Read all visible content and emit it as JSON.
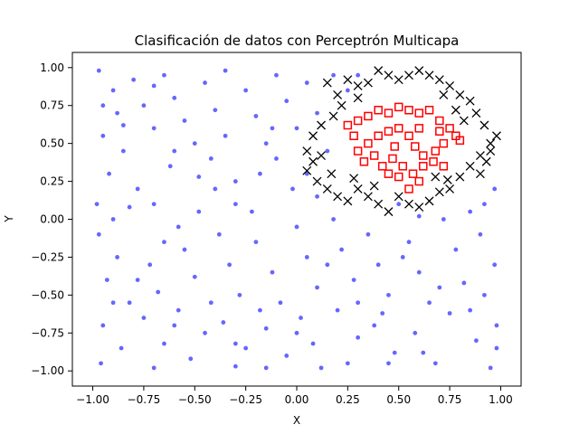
{
  "chart_data": {
    "type": "scatter",
    "title": "Clasificación de datos con Perceptrón Multicapa",
    "xlabel": "X",
    "ylabel": "Y",
    "xlim": [
      -1.1,
      1.1
    ],
    "ylim": [
      -1.1,
      1.1
    ],
    "xticks": [
      -1.0,
      -0.75,
      -0.5,
      -0.25,
      0.0,
      0.25,
      0.5,
      0.75,
      1.0
    ],
    "xtick_labels": [
      "−1.00",
      "−0.75",
      "−0.50",
      "−0.25",
      "0.00",
      "0.25",
      "0.50",
      "0.75",
      "1.00"
    ],
    "yticks": [
      -1.0,
      -0.75,
      -0.5,
      -0.25,
      0.0,
      0.25,
      0.5,
      0.75,
      1.0
    ],
    "ytick_labels": [
      "−1.00",
      "−0.75",
      "−0.50",
      "−0.25",
      "0.00",
      "0.25",
      "0.50",
      "0.75",
      "1.00"
    ],
    "grid": false,
    "series": [
      {
        "marker": "dot",
        "color": "#0000ff",
        "points": [
          [
            -0.97,
            0.98
          ],
          [
            -0.9,
            0.85
          ],
          [
            -0.88,
            0.7
          ],
          [
            -0.95,
            0.55
          ],
          [
            -0.8,
            0.92
          ],
          [
            -0.75,
            0.75
          ],
          [
            -0.7,
            0.6
          ],
          [
            -0.85,
            0.45
          ],
          [
            -0.92,
            0.3
          ],
          [
            -0.78,
            0.2
          ],
          [
            -0.65,
            0.95
          ],
          [
            -0.6,
            0.8
          ],
          [
            -0.55,
            0.65
          ],
          [
            -0.5,
            0.5
          ],
          [
            -0.62,
            0.35
          ],
          [
            -0.7,
            0.1
          ],
          [
            -0.45,
            0.9
          ],
          [
            -0.4,
            0.72
          ],
          [
            -0.35,
            0.55
          ],
          [
            -0.42,
            0.4
          ],
          [
            -0.3,
            0.25
          ],
          [
            -0.25,
            0.85
          ],
          [
            -0.2,
            0.68
          ],
          [
            -0.15,
            0.5
          ],
          [
            -0.1,
            0.95
          ],
          [
            -0.05,
            0.78
          ],
          [
            0.0,
            0.6
          ],
          [
            0.05,
            0.9
          ],
          [
            -0.18,
            0.3
          ],
          [
            -0.3,
            0.1
          ],
          [
            -0.48,
            0.05
          ],
          [
            -0.58,
            -0.05
          ],
          [
            -0.97,
            -0.1
          ],
          [
            -0.88,
            -0.25
          ],
          [
            -0.93,
            -0.4
          ],
          [
            -0.82,
            -0.55
          ],
          [
            -0.95,
            -0.7
          ],
          [
            -0.86,
            -0.85
          ],
          [
            -0.96,
            -0.95
          ],
          [
            -0.72,
            -0.3
          ],
          [
            -0.68,
            -0.48
          ],
          [
            -0.75,
            -0.65
          ],
          [
            -0.65,
            -0.82
          ],
          [
            -0.7,
            -0.98
          ],
          [
            -0.55,
            -0.2
          ],
          [
            -0.5,
            -0.38
          ],
          [
            -0.58,
            -0.6
          ],
          [
            -0.45,
            -0.75
          ],
          [
            -0.52,
            -0.92
          ],
          [
            -0.38,
            -0.1
          ],
          [
            -0.33,
            -0.3
          ],
          [
            -0.28,
            -0.5
          ],
          [
            -0.36,
            -0.68
          ],
          [
            -0.25,
            -0.85
          ],
          [
            -0.3,
            -0.97
          ],
          [
            -0.2,
            -0.15
          ],
          [
            -0.12,
            -0.35
          ],
          [
            -0.08,
            -0.55
          ],
          [
            -0.15,
            -0.72
          ],
          [
            -0.05,
            -0.9
          ],
          [
            0.0,
            -0.05
          ],
          [
            0.05,
            -0.25
          ],
          [
            0.1,
            -0.45
          ],
          [
            0.02,
            -0.65
          ],
          [
            0.08,
            -0.82
          ],
          [
            0.12,
            -0.98
          ],
          [
            0.18,
            0.0
          ],
          [
            0.22,
            -0.2
          ],
          [
            0.28,
            -0.4
          ],
          [
            0.2,
            -0.6
          ],
          [
            0.3,
            -0.78
          ],
          [
            0.25,
            -0.95
          ],
          [
            0.35,
            -0.1
          ],
          [
            0.4,
            -0.3
          ],
          [
            0.45,
            -0.5
          ],
          [
            0.38,
            -0.7
          ],
          [
            0.48,
            -0.88
          ],
          [
            0.55,
            -0.15
          ],
          [
            0.6,
            -0.35
          ],
          [
            0.65,
            -0.55
          ],
          [
            0.58,
            -0.75
          ],
          [
            0.68,
            -0.95
          ],
          [
            0.72,
            0.0
          ],
          [
            0.78,
            -0.2
          ],
          [
            0.82,
            -0.42
          ],
          [
            0.75,
            -0.62
          ],
          [
            0.88,
            -0.8
          ],
          [
            0.95,
            -0.98
          ],
          [
            0.9,
            -0.1
          ],
          [
            0.97,
            -0.3
          ],
          [
            0.92,
            -0.5
          ],
          [
            0.98,
            -0.7
          ],
          [
            0.85,
            0.05
          ],
          [
            0.6,
            0.02
          ],
          [
            0.5,
            0.1
          ],
          [
            0.15,
            0.45
          ],
          [
            0.1,
            0.7
          ],
          [
            0.18,
            0.95
          ],
          [
            0.25,
            0.85
          ],
          [
            0.3,
            0.95
          ],
          [
            0.05,
            0.3
          ],
          [
            0.1,
            0.15
          ],
          [
            -0.02,
            0.2
          ],
          [
            0.92,
            0.1
          ],
          [
            0.97,
            0.2
          ],
          [
            -0.98,
            0.1
          ],
          [
            -0.9,
            0.0
          ],
          [
            -0.85,
            0.62
          ],
          [
            -0.6,
            0.45
          ],
          [
            -0.4,
            0.2
          ],
          [
            -0.22,
            0.05
          ],
          [
            -0.1,
            0.4
          ],
          [
            -0.65,
            -0.15
          ],
          [
            -0.78,
            -0.4
          ],
          [
            -0.42,
            -0.55
          ],
          [
            -0.18,
            -0.6
          ],
          [
            0.15,
            -0.3
          ],
          [
            0.42,
            -0.62
          ],
          [
            0.7,
            -0.45
          ],
          [
            0.52,
            -0.25
          ],
          [
            -0.95,
            0.75
          ],
          [
            -0.7,
            0.88
          ],
          [
            -0.35,
            0.98
          ],
          [
            -0.12,
            0.6
          ],
          [
            -0.48,
            0.28
          ],
          [
            -0.82,
            0.08
          ],
          [
            -0.9,
            -0.55
          ],
          [
            -0.6,
            -0.7
          ],
          [
            -0.3,
            -0.82
          ],
          [
            0.0,
            -0.75
          ],
          [
            0.3,
            -0.55
          ],
          [
            0.62,
            -0.88
          ],
          [
            0.85,
            -0.6
          ],
          [
            0.98,
            -0.85
          ],
          [
            0.45,
            -0.95
          ],
          [
            -0.15,
            -0.98
          ]
        ]
      },
      {
        "marker": "square",
        "color": "#ff0000",
        "points": [
          [
            0.25,
            0.62
          ],
          [
            0.3,
            0.65
          ],
          [
            0.28,
            0.55
          ],
          [
            0.35,
            0.68
          ],
          [
            0.4,
            0.72
          ],
          [
            0.45,
            0.7
          ],
          [
            0.5,
            0.74
          ],
          [
            0.55,
            0.72
          ],
          [
            0.6,
            0.7
          ],
          [
            0.65,
            0.72
          ],
          [
            0.7,
            0.65
          ],
          [
            0.75,
            0.6
          ],
          [
            0.78,
            0.55
          ],
          [
            0.8,
            0.52
          ],
          [
            0.72,
            0.5
          ],
          [
            0.68,
            0.45
          ],
          [
            0.62,
            0.42
          ],
          [
            0.58,
            0.48
          ],
          [
            0.55,
            0.55
          ],
          [
            0.5,
            0.6
          ],
          [
            0.45,
            0.58
          ],
          [
            0.4,
            0.55
          ],
          [
            0.35,
            0.5
          ],
          [
            0.3,
            0.45
          ],
          [
            0.33,
            0.38
          ],
          [
            0.38,
            0.42
          ],
          [
            0.42,
            0.35
          ],
          [
            0.47,
            0.4
          ],
          [
            0.52,
            0.35
          ],
          [
            0.57,
            0.3
          ],
          [
            0.62,
            0.35
          ],
          [
            0.67,
            0.38
          ],
          [
            0.72,
            0.35
          ],
          [
            0.6,
            0.25
          ],
          [
            0.55,
            0.2
          ],
          [
            0.5,
            0.28
          ],
          [
            0.45,
            0.3
          ],
          [
            0.48,
            0.48
          ],
          [
            0.6,
            0.6
          ],
          [
            0.7,
            0.58
          ]
        ]
      },
      {
        "marker": "x",
        "color": "#000000",
        "points": [
          [
            0.15,
            0.9
          ],
          [
            0.2,
            0.82
          ],
          [
            0.22,
            0.75
          ],
          [
            0.18,
            0.68
          ],
          [
            0.12,
            0.62
          ],
          [
            0.08,
            0.55
          ],
          [
            0.05,
            0.45
          ],
          [
            0.08,
            0.38
          ],
          [
            0.05,
            0.32
          ],
          [
            0.1,
            0.25
          ],
          [
            0.15,
            0.2
          ],
          [
            0.2,
            0.15
          ],
          [
            0.25,
            0.12
          ],
          [
            0.3,
            0.2
          ],
          [
            0.35,
            0.15
          ],
          [
            0.4,
            0.1
          ],
          [
            0.45,
            0.05
          ],
          [
            0.5,
            0.15
          ],
          [
            0.55,
            0.1
          ],
          [
            0.6,
            0.08
          ],
          [
            0.65,
            0.12
          ],
          [
            0.7,
            0.18
          ],
          [
            0.75,
            0.2
          ],
          [
            0.8,
            0.28
          ],
          [
            0.85,
            0.35
          ],
          [
            0.9,
            0.42
          ],
          [
            0.95,
            0.5
          ],
          [
            0.98,
            0.55
          ],
          [
            0.92,
            0.62
          ],
          [
            0.88,
            0.7
          ],
          [
            0.85,
            0.78
          ],
          [
            0.8,
            0.82
          ],
          [
            0.75,
            0.88
          ],
          [
            0.7,
            0.92
          ],
          [
            0.65,
            0.95
          ],
          [
            0.6,
            0.98
          ],
          [
            0.55,
            0.95
          ],
          [
            0.5,
            0.92
          ],
          [
            0.45,
            0.95
          ],
          [
            0.4,
            0.98
          ],
          [
            0.35,
            0.9
          ],
          [
            0.3,
            0.88
          ],
          [
            0.25,
            0.92
          ],
          [
            0.3,
            0.8
          ],
          [
            0.82,
            0.65
          ],
          [
            0.78,
            0.72
          ],
          [
            0.72,
            0.82
          ],
          [
            0.9,
            0.3
          ],
          [
            0.95,
            0.45
          ],
          [
            0.12,
            0.42
          ],
          [
            0.17,
            0.3
          ],
          [
            0.28,
            0.27
          ],
          [
            0.38,
            0.22
          ],
          [
            0.68,
            0.28
          ],
          [
            0.74,
            0.26
          ],
          [
            0.93,
            0.38
          ]
        ]
      }
    ]
  }
}
